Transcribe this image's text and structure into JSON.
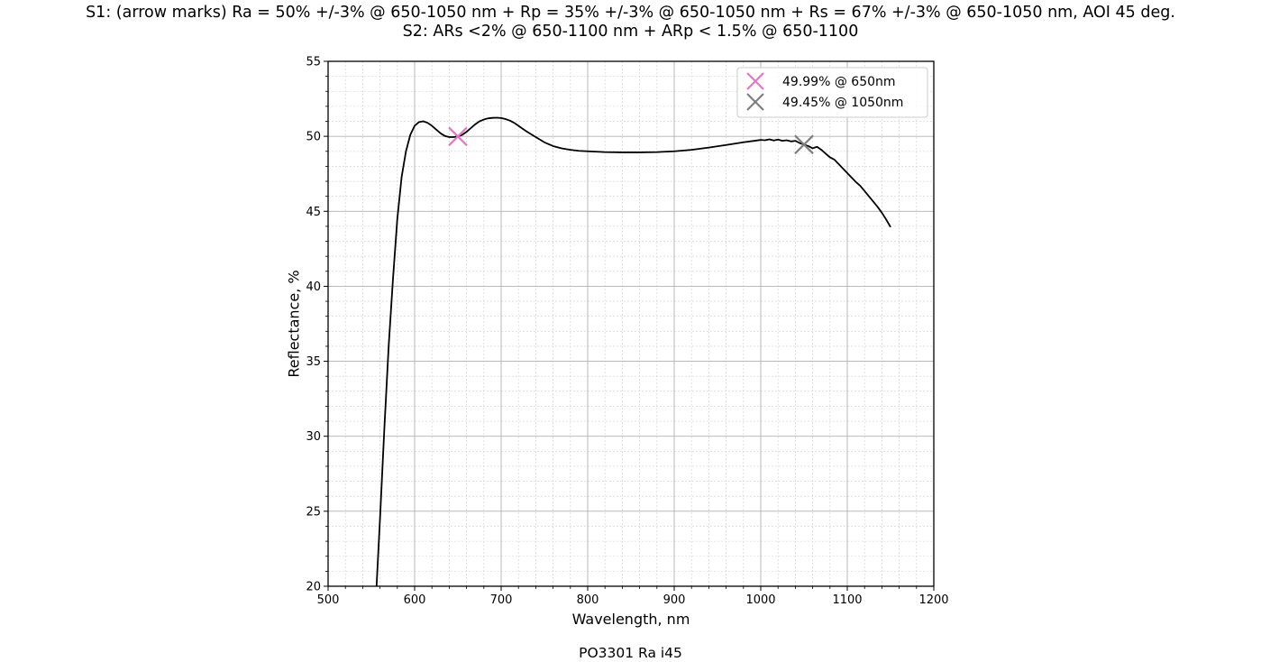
{
  "title": {
    "line1": "S1: (arrow marks)  Ra = 50% +/-3% @ 650-1050 nm + Rp = 35% +/-3% @ 650-1050 nm + Rs = 67% +/-3% @ 650-1050 nm, AOI 45 deg.",
    "line2": "S2: ARs <2% @ 650-1100 nm + ARp < 1.5% @ 650-1100"
  },
  "footer": "PO3301 Ra i45",
  "chart_data": {
    "type": "line",
    "xlabel": "Wavelength, nm",
    "ylabel": "Reflectance, %",
    "xlim": [
      500,
      1200
    ],
    "ylim": [
      20,
      55
    ],
    "xticks": [
      500,
      600,
      700,
      800,
      900,
      1000,
      1100,
      1200
    ],
    "yticks": [
      20,
      25,
      30,
      35,
      40,
      45,
      50,
      55
    ],
    "grid": "major and minor",
    "legend_position": "top-right",
    "series": [
      {
        "color": "#000000",
        "x": [
          556,
          560,
          565,
          570,
          575,
          580,
          585,
          590,
          595,
          600,
          605,
          610,
          615,
          620,
          625,
          630,
          635,
          640,
          645,
          650,
          655,
          660,
          665,
          670,
          675,
          680,
          685,
          690,
          695,
          700,
          705,
          710,
          715,
          720,
          725,
          730,
          740,
          750,
          760,
          770,
          780,
          790,
          800,
          820,
          840,
          860,
          880,
          900,
          920,
          940,
          960,
          980,
          995,
          1000,
          1005,
          1010,
          1015,
          1020,
          1025,
          1030,
          1035,
          1040,
          1045,
          1050,
          1055,
          1060,
          1065,
          1070,
          1075,
          1080,
          1085,
          1090,
          1095,
          1100,
          1105,
          1110,
          1115,
          1120,
          1125,
          1130,
          1135,
          1140,
          1145,
          1150
        ],
        "y": [
          20,
          24.5,
          30.5,
          36,
          40.5,
          44.5,
          47.3,
          49.0,
          50.1,
          50.7,
          50.95,
          51.0,
          50.9,
          50.7,
          50.45,
          50.2,
          50.02,
          49.95,
          49.95,
          49.99,
          50.1,
          50.3,
          50.55,
          50.8,
          51.0,
          51.12,
          51.2,
          51.23,
          51.24,
          51.22,
          51.15,
          51.05,
          50.9,
          50.7,
          50.5,
          50.3,
          49.95,
          49.6,
          49.35,
          49.2,
          49.1,
          49.03,
          49.0,
          48.95,
          48.93,
          48.93,
          48.95,
          49.0,
          49.1,
          49.25,
          49.42,
          49.6,
          49.72,
          49.76,
          49.74,
          49.8,
          49.72,
          49.78,
          49.7,
          49.74,
          49.66,
          49.7,
          49.55,
          49.45,
          49.35,
          49.2,
          49.3,
          49.1,
          48.85,
          48.6,
          48.45,
          48.15,
          47.85,
          47.55,
          47.25,
          46.95,
          46.7,
          46.35,
          46.0,
          45.65,
          45.3,
          44.9,
          44.45,
          43.95
        ]
      }
    ],
    "markers": [
      {
        "label": "49.99% @ 650nm",
        "x": 650,
        "y": 49.99,
        "color": "#e377c2",
        "symbol": "x"
      },
      {
        "label": "49.45% @ 1050nm",
        "x": 1050,
        "y": 49.45,
        "color": "#7f7f7f",
        "symbol": "x"
      }
    ]
  }
}
